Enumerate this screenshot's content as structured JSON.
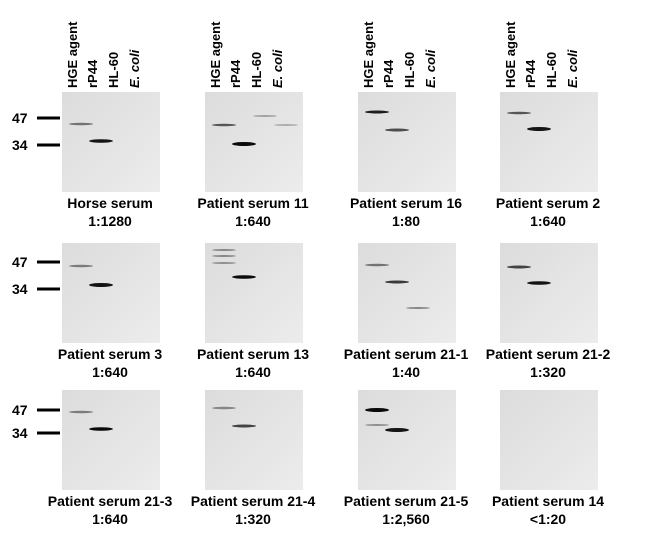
{
  "lanes": [
    "HGE agent",
    "rP44",
    "HL-60",
    "E. coli"
  ],
  "markers": [
    "47",
    "34"
  ],
  "panels": [
    {
      "name": "Horse serum",
      "dilution": "1:1280"
    },
    {
      "name": "Patient serum 11",
      "dilution": "1:640"
    },
    {
      "name": "Patient serum 16",
      "dilution": "1:80"
    },
    {
      "name": "Patient serum 2",
      "dilution": "1:640"
    },
    {
      "name": "Patient serum 3",
      "dilution": "1:640"
    },
    {
      "name": "Patient serum 13",
      "dilution": "1:640"
    },
    {
      "name": "Patient serum 21-1",
      "dilution": "1:40"
    },
    {
      "name": "Patient serum 21-2",
      "dilution": "1:320"
    },
    {
      "name": "Patient serum 21-3",
      "dilution": "1:640"
    },
    {
      "name": "Patient serum 21-4",
      "dilution": "1:320"
    },
    {
      "name": "Patient serum 21-5",
      "dilution": "1:2,560"
    },
    {
      "name": "Patient serum 14",
      "dilution": "<1:20"
    }
  ]
}
